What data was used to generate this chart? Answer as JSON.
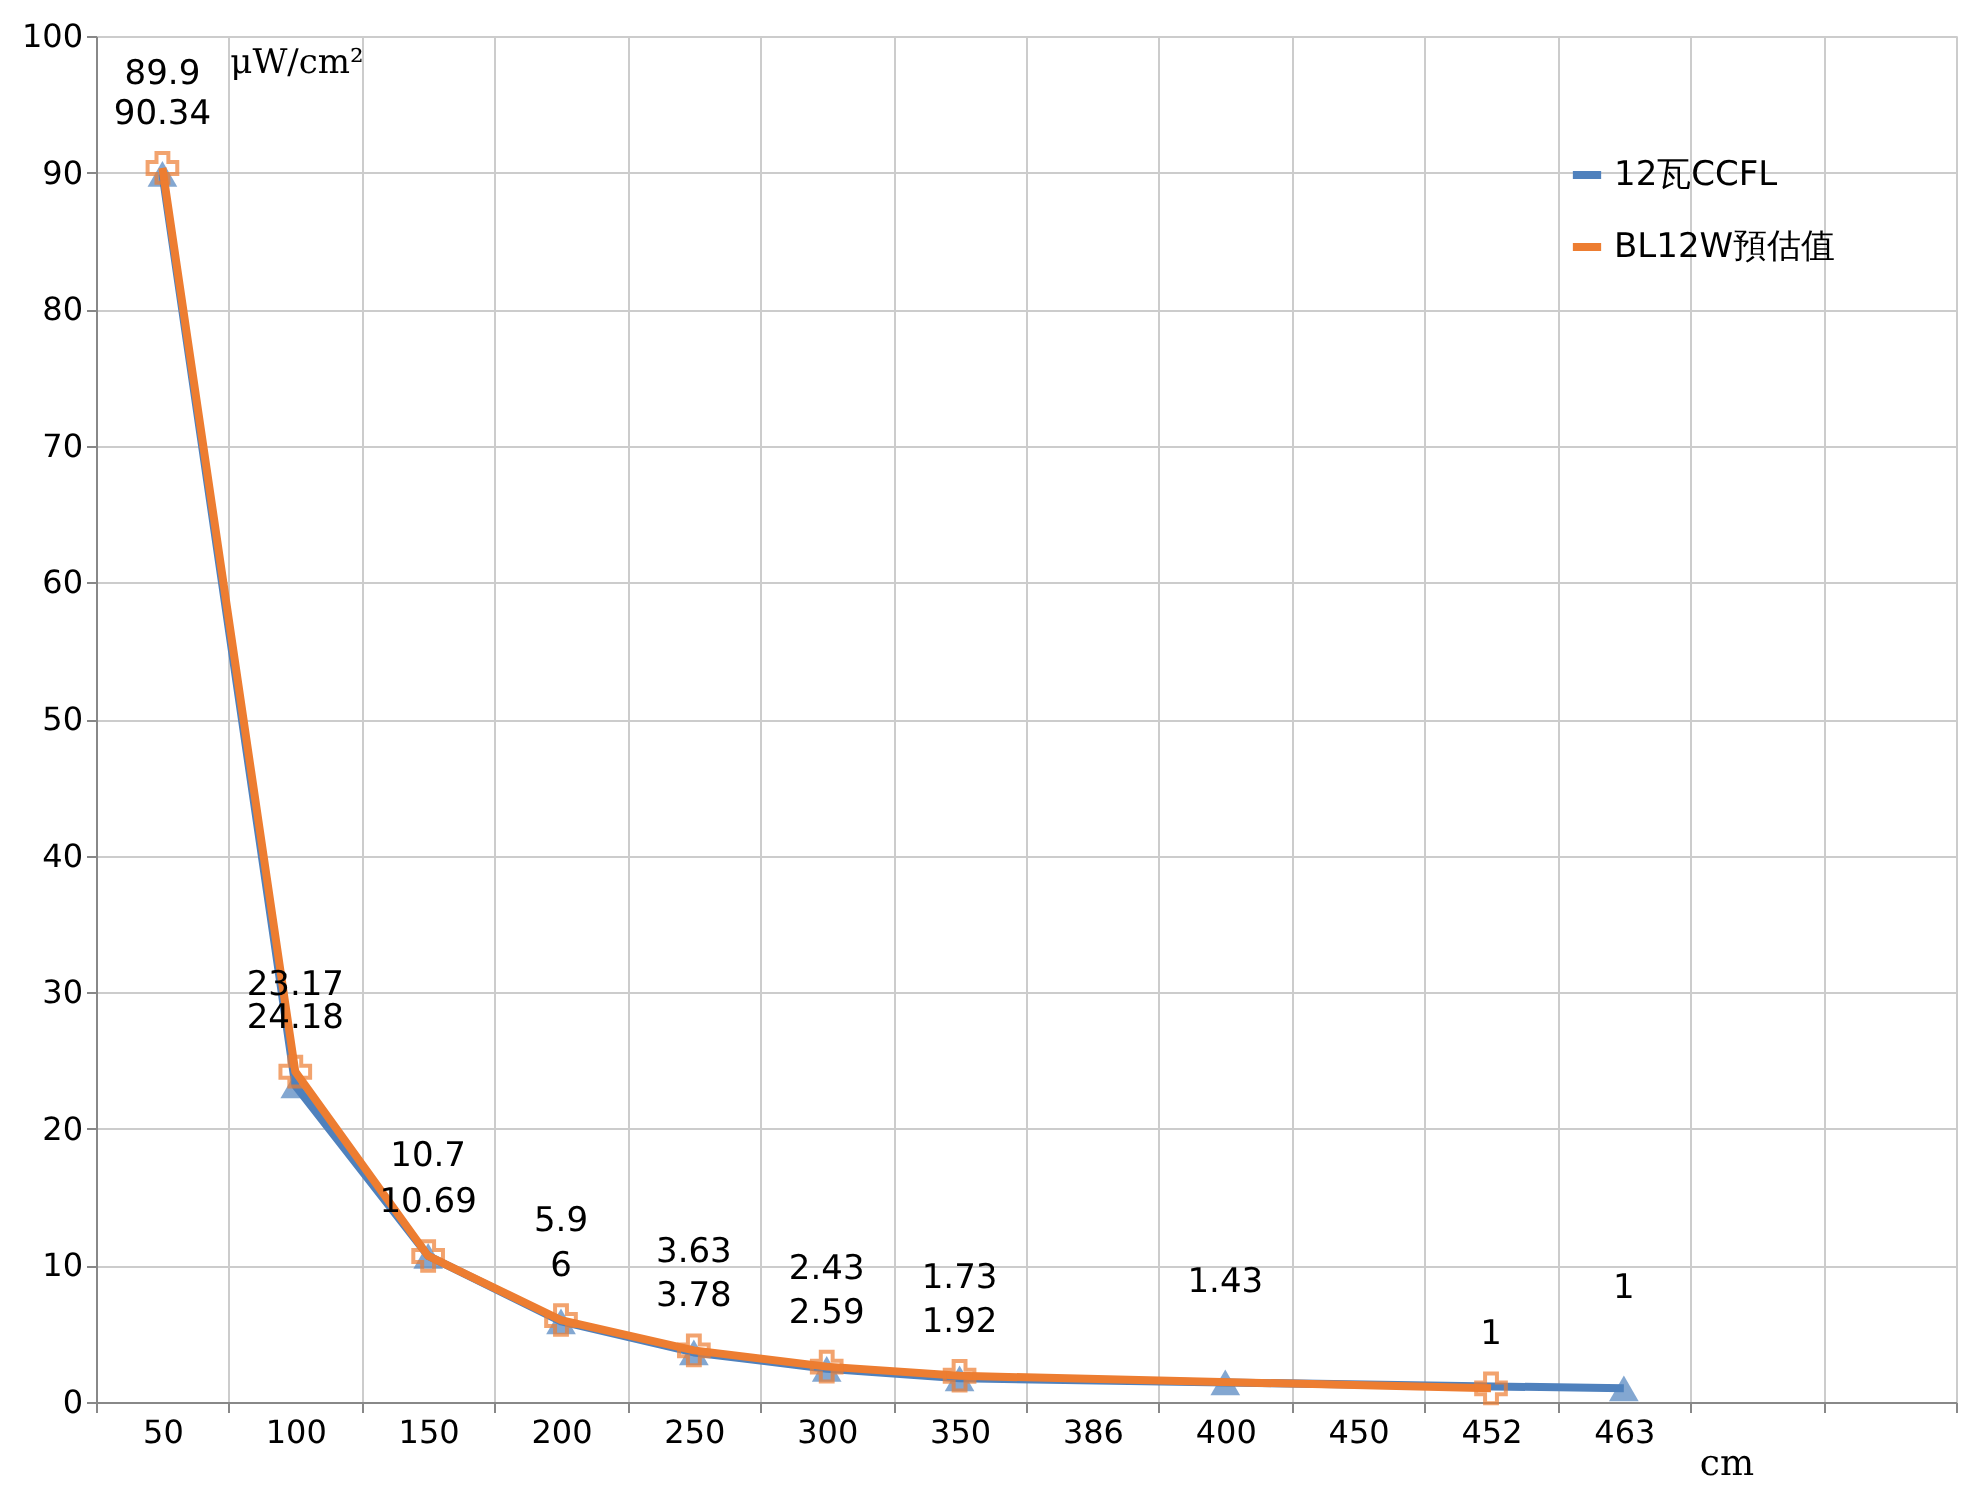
{
  "chart_data": {
    "type": "line",
    "ylabel": "μW/cm²",
    "xlabel": "cm",
    "categories": [
      "50",
      "100",
      "150",
      "200",
      "250",
      "300",
      "350",
      "386",
      "400",
      "450",
      "452",
      "463",
      null,
      null
    ],
    "series": [
      {
        "name": "12瓦CCFL",
        "color": "#4f81bd",
        "marker": "triangle",
        "values": [
          89.9,
          23.17,
          10.7,
          5.9,
          3.63,
          2.43,
          1.73,
          null,
          1.43,
          null,
          null,
          1,
          null,
          null
        ]
      },
      {
        "name": "BL12W預估值",
        "color": "#ed7d31",
        "marker": "cross",
        "values": [
          90.34,
          24.18,
          10.69,
          6,
          3.78,
          2.59,
          1.92,
          null,
          null,
          null,
          1,
          null,
          null,
          null
        ]
      }
    ],
    "ylim": [
      0,
      100
    ],
    "yticks": [
      0,
      10,
      20,
      30,
      40,
      50,
      60,
      70,
      80,
      90,
      100
    ],
    "grid": true,
    "legend": "top right",
    "data_labels": true
  }
}
